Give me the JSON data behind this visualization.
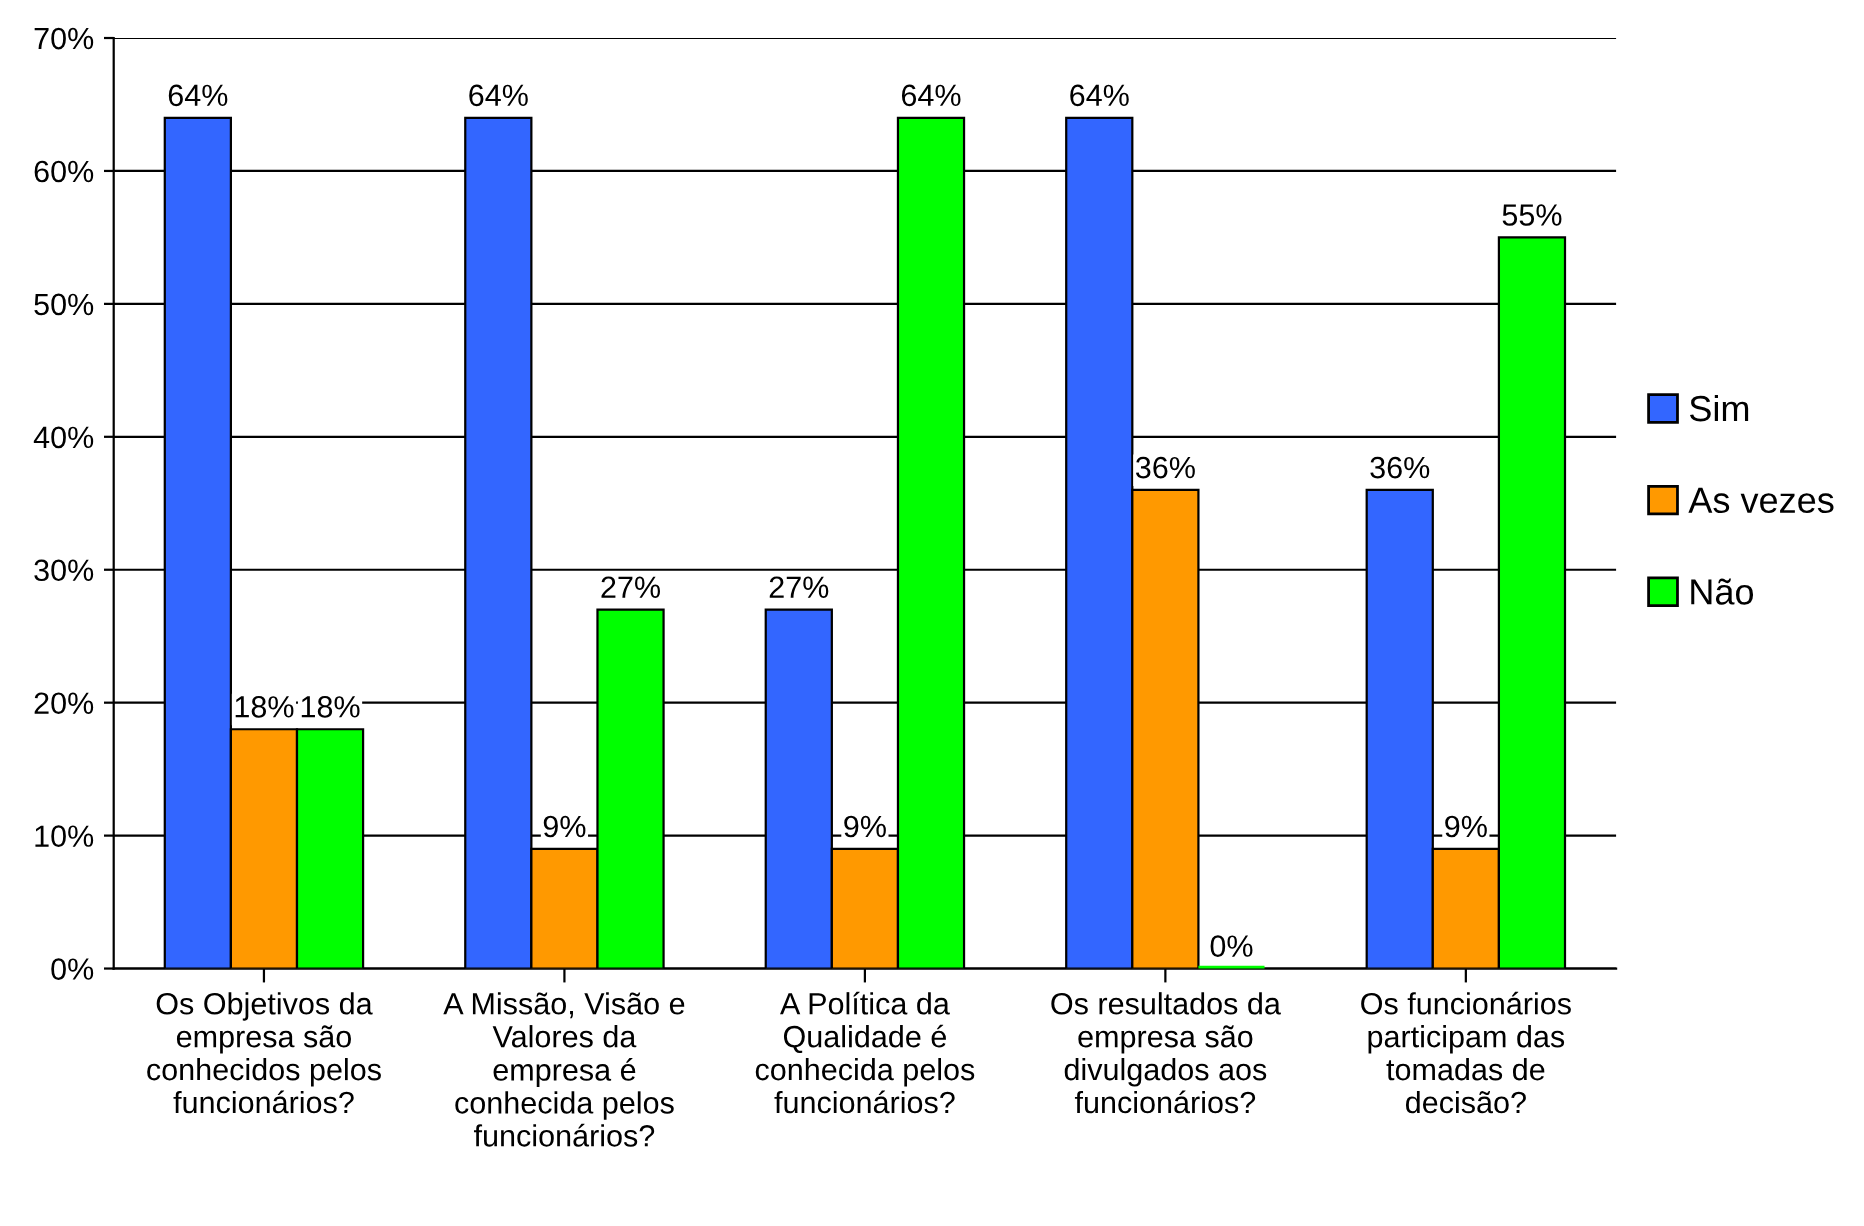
{
  "chart_data": {
    "type": "bar",
    "categories": [
      "Os Objetivos da\nempresa são\nconhecidos pelos\nfuncionários?",
      "A Missão, Visão e\nValores da\nempresa é\nconhecida pelos\nfuncionários?",
      "A Política da\nQualidade é\nconhecida pelos\nfuncionários?",
      "Os resultados da\nempresa são\ndivulgados aos\nfuncionários?",
      "Os funcionários\nparticipam das\ntomadas de\ndecisão?"
    ],
    "series": [
      {
        "name": "Sim",
        "color": "#3366ff",
        "values": [
          64,
          64,
          27,
          64,
          36
        ],
        "value_labels": [
          "64%",
          "64%",
          "27%",
          "64%",
          "36%"
        ]
      },
      {
        "name": "As vezes",
        "color": "#ff9900",
        "values": [
          18,
          9,
          9,
          36,
          9
        ],
        "value_labels": [
          "18%",
          "9%",
          "9%",
          "36%",
          "9%"
        ]
      },
      {
        "name": "Não",
        "color": "#00ff00",
        "values": [
          18,
          27,
          64,
          0,
          55
        ],
        "value_labels": [
          "18%",
          "27%",
          "64%",
          "0%",
          "55%"
        ]
      }
    ],
    "ylim": [
      0,
      70
    ],
    "yticks": [
      {
        "value": 0,
        "label": "0%"
      },
      {
        "value": 10,
        "label": "10%"
      },
      {
        "value": 20,
        "label": "20%"
      },
      {
        "value": 30,
        "label": "30%"
      },
      {
        "value": 40,
        "label": "40%"
      },
      {
        "value": 50,
        "label": "50%"
      },
      {
        "value": 60,
        "label": "60%"
      },
      {
        "value": 70,
        "label": "70%"
      }
    ],
    "grid": "y",
    "legend": "right"
  }
}
